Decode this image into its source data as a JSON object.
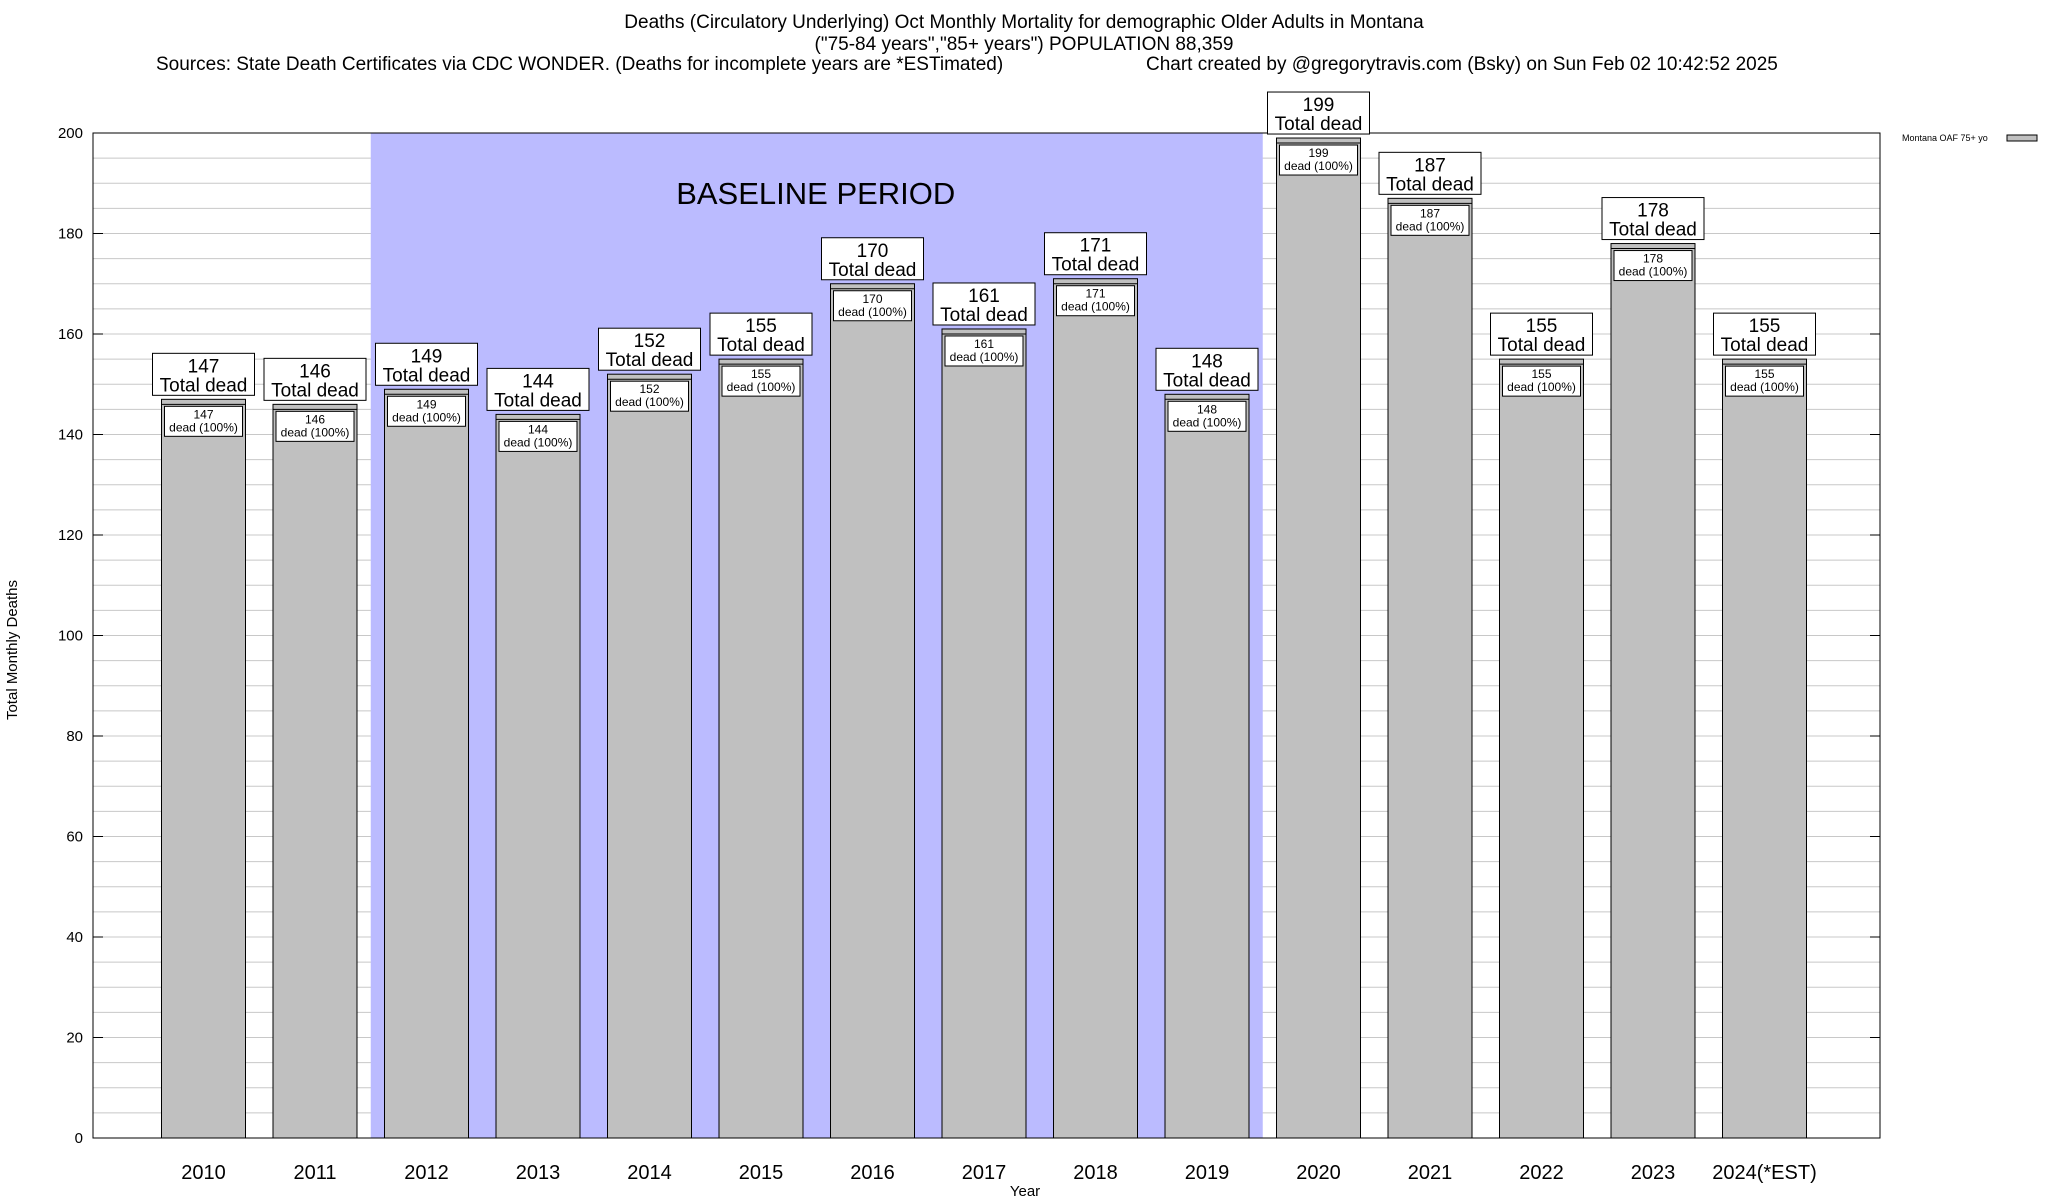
{
  "title": {
    "line1": "Deaths (Circulatory Underlying) Oct Monthly Mortality for demographic Older Adults in Montana",
    "line2": "(\"75-84 years\",\"85+ years\") POPULATION 88,359",
    "sources": "Sources: State Death Certificates via CDC WONDER. (Deaths for incomplete years are *ESTimated)",
    "credit": "Chart created by @gregorytravis.com (Bsky) on Sun Feb 02 10:42:52 2025"
  },
  "annotation": "BASELINE PERIOD",
  "total_suffix": "Total dead",
  "dead_suffix": "dead (100%)",
  "colors": {
    "bar": "#c0c0c0",
    "baseline": "#bbbbff",
    "grid": "#c8c8c8"
  },
  "chart_data": {
    "type": "bar",
    "categories": [
      "2010",
      "2011",
      "2012",
      "2013",
      "2014",
      "2015",
      "2016",
      "2017",
      "2018",
      "2019",
      "2020",
      "2021",
      "2022",
      "2023",
      "2024(*EST)"
    ],
    "series": [
      {
        "name": "Montana OAF 75+ yo",
        "values": [
          147,
          146,
          149,
          144,
          152,
          155,
          170,
          161,
          171,
          148,
          199,
          187,
          155,
          178,
          155
        ]
      }
    ],
    "xlabel": "Year",
    "ylabel": "Total Monthly Deaths",
    "ylim": [
      0,
      200
    ],
    "yticks": [
      0,
      20,
      40,
      60,
      80,
      100,
      120,
      140,
      160,
      180,
      200
    ],
    "baseline_period": [
      "2012",
      "2019"
    ],
    "grid": true,
    "legend_position": "top-right"
  }
}
